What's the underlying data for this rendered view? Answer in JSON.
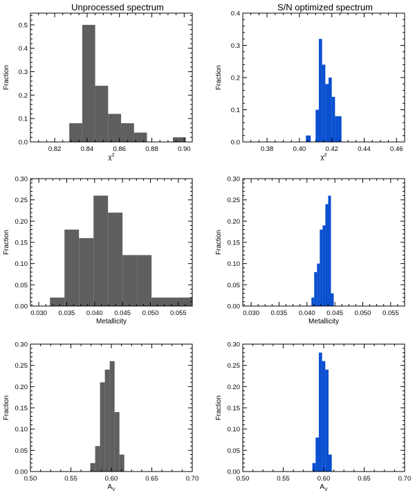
{
  "column_titles": [
    "Unprocessed spectrum",
    "S/N optimized spectrum"
  ],
  "colors": {
    "gray": "#5f5f5f",
    "blue": "#0a4fd0",
    "axis": "#000000"
  },
  "chart_data": [
    {
      "type": "bar",
      "panel": "top-left",
      "title": "Unprocessed spectrum",
      "xlabel": "χ",
      "xlabel_sup": "2",
      "ylabel": "Fraction",
      "xlim": [
        0.805,
        0.905
      ],
      "ylim": [
        0,
        0.55
      ],
      "color": "gray",
      "xticks": [
        0.82,
        0.84,
        0.86,
        0.88,
        0.9
      ],
      "xticklabels": [
        "0.82",
        "0.84",
        "0.86",
        "0.88",
        "0.90"
      ],
      "yticks": [
        0.0,
        0.1,
        0.2,
        0.3,
        0.4,
        0.5
      ],
      "yticklabels": [
        "0.0",
        "0.1",
        "0.2",
        "0.3",
        "0.4",
        "0.5"
      ],
      "bins": [
        [
          0.829,
          0.837,
          0.08
        ],
        [
          0.837,
          0.845,
          0.5
        ],
        [
          0.845,
          0.853,
          0.24
        ],
        [
          0.853,
          0.861,
          0.12
        ],
        [
          0.861,
          0.869,
          0.08
        ],
        [
          0.869,
          0.877,
          0.04
        ],
        [
          0.893,
          0.901,
          0.02
        ]
      ]
    },
    {
      "type": "bar",
      "panel": "top-right",
      "title": "S/N optimized spectrum",
      "xlabel": "χ",
      "xlabel_sup": "2",
      "ylabel": "Fraction",
      "xlim": [
        0.365,
        0.465
      ],
      "ylim": [
        0,
        0.4
      ],
      "color": "blue",
      "xticks": [
        0.38,
        0.4,
        0.42,
        0.44,
        0.46
      ],
      "xticklabels": [
        "0.38",
        "0.40",
        "0.42",
        "0.44",
        "0.46"
      ],
      "yticks": [
        0.0,
        0.1,
        0.2,
        0.3,
        0.4
      ],
      "yticklabels": [
        "0.0",
        "0.1",
        "0.2",
        "0.3",
        "0.4"
      ],
      "bins": [
        [
          0.404,
          0.407,
          0.02
        ],
        [
          0.41,
          0.412,
          0.1
        ],
        [
          0.412,
          0.414,
          0.32
        ],
        [
          0.414,
          0.416,
          0.24
        ],
        [
          0.416,
          0.418,
          0.18
        ],
        [
          0.418,
          0.42,
          0.2
        ],
        [
          0.42,
          0.422,
          0.14
        ],
        [
          0.422,
          0.424,
          0.08
        ],
        [
          0.424,
          0.426,
          0.08
        ]
      ]
    },
    {
      "type": "bar",
      "panel": "middle-left",
      "xlabel": "Metallicity",
      "ylabel": "Fraction",
      "xlim": [
        0.0285,
        0.0575
      ],
      "ylim": [
        0,
        0.3
      ],
      "color": "gray",
      "xticks": [
        0.03,
        0.035,
        0.04,
        0.045,
        0.05,
        0.055
      ],
      "xticklabels": [
        "0.030",
        "0.035",
        "0.040",
        "0.045",
        "0.050",
        "0.055"
      ],
      "yticks": [
        0.0,
        0.05,
        0.1,
        0.15,
        0.2,
        0.25,
        0.3
      ],
      "yticklabels": [
        "0.00",
        "0.05",
        "0.10",
        "0.15",
        "0.20",
        "0.25",
        "0.30"
      ],
      "bins": [
        [
          0.032,
          0.0346,
          0.02
        ],
        [
          0.0346,
          0.0372,
          0.18
        ],
        [
          0.0372,
          0.0398,
          0.16
        ],
        [
          0.0398,
          0.0424,
          0.26
        ],
        [
          0.0424,
          0.045,
          0.22
        ],
        [
          0.045,
          0.0476,
          0.12
        ],
        [
          0.0476,
          0.0502,
          0.12
        ],
        [
          0.0502,
          0.0575,
          0.02
        ]
      ]
    },
    {
      "type": "bar",
      "panel": "middle-right",
      "xlabel": "Metallicity",
      "ylabel": "Fraction",
      "xlim": [
        0.0285,
        0.0575
      ],
      "ylim": [
        0,
        0.3
      ],
      "color": "blue",
      "xticks": [
        0.03,
        0.035,
        0.04,
        0.045,
        0.05,
        0.055
      ],
      "xticklabels": [
        "0.030",
        "0.035",
        "0.040",
        "0.045",
        "0.050",
        "0.055"
      ],
      "yticks": [
        0.0,
        0.05,
        0.1,
        0.15,
        0.2,
        0.25,
        0.3
      ],
      "yticklabels": [
        "0.00",
        "0.05",
        "0.10",
        "0.15",
        "0.20",
        "0.25",
        "0.30"
      ],
      "bins": [
        [
          0.0408,
          0.0413,
          0.02
        ],
        [
          0.0413,
          0.0418,
          0.08
        ],
        [
          0.0418,
          0.0423,
          0.1
        ],
        [
          0.0423,
          0.0428,
          0.18
        ],
        [
          0.0428,
          0.0433,
          0.19
        ],
        [
          0.0433,
          0.0438,
          0.24
        ],
        [
          0.0438,
          0.0443,
          0.26
        ],
        [
          0.0443,
          0.0448,
          0.03
        ]
      ]
    },
    {
      "type": "bar",
      "panel": "bottom-left",
      "xlabel": "A",
      "xlabel_sub": "V",
      "ylabel": "Fraction",
      "xlim": [
        0.5,
        0.7
      ],
      "ylim": [
        0,
        0.3
      ],
      "color": "gray",
      "xticks": [
        0.5,
        0.55,
        0.6,
        0.65,
        0.7
      ],
      "xticklabels": [
        "0.50",
        "0.55",
        "0.60",
        "0.65",
        "0.70"
      ],
      "yticks": [
        0.0,
        0.05,
        0.1,
        0.15,
        0.2,
        0.25,
        0.3
      ],
      "yticklabels": [
        "0.00",
        "0.05",
        "0.10",
        "0.15",
        "0.20",
        "0.25",
        "0.30"
      ],
      "bins": [
        [
          0.574,
          0.58,
          0.02
        ],
        [
          0.58,
          0.586,
          0.06
        ],
        [
          0.586,
          0.592,
          0.21
        ],
        [
          0.592,
          0.598,
          0.24
        ],
        [
          0.598,
          0.604,
          0.26
        ],
        [
          0.604,
          0.61,
          0.14
        ],
        [
          0.61,
          0.616,
          0.04
        ]
      ]
    },
    {
      "type": "bar",
      "panel": "bottom-right",
      "xlabel": "A",
      "xlabel_sub": "V",
      "ylabel": "Fraction",
      "xlim": [
        0.5,
        0.7
      ],
      "ylim": [
        0,
        0.3
      ],
      "color": "blue",
      "xticks": [
        0.5,
        0.55,
        0.6,
        0.65,
        0.7
      ],
      "xticklabels": [
        "0.50",
        "0.55",
        "0.60",
        "0.65",
        "0.70"
      ],
      "yticks": [
        0.0,
        0.05,
        0.1,
        0.15,
        0.2,
        0.25,
        0.3
      ],
      "yticklabels": [
        "0.00",
        "0.05",
        "0.10",
        "0.15",
        "0.20",
        "0.25",
        "0.30"
      ],
      "bins": [
        [
          0.586,
          0.59,
          0.02
        ],
        [
          0.59,
          0.594,
          0.08
        ],
        [
          0.594,
          0.598,
          0.28
        ],
        [
          0.598,
          0.602,
          0.26
        ],
        [
          0.602,
          0.606,
          0.24
        ],
        [
          0.606,
          0.61,
          0.04
        ]
      ]
    }
  ]
}
